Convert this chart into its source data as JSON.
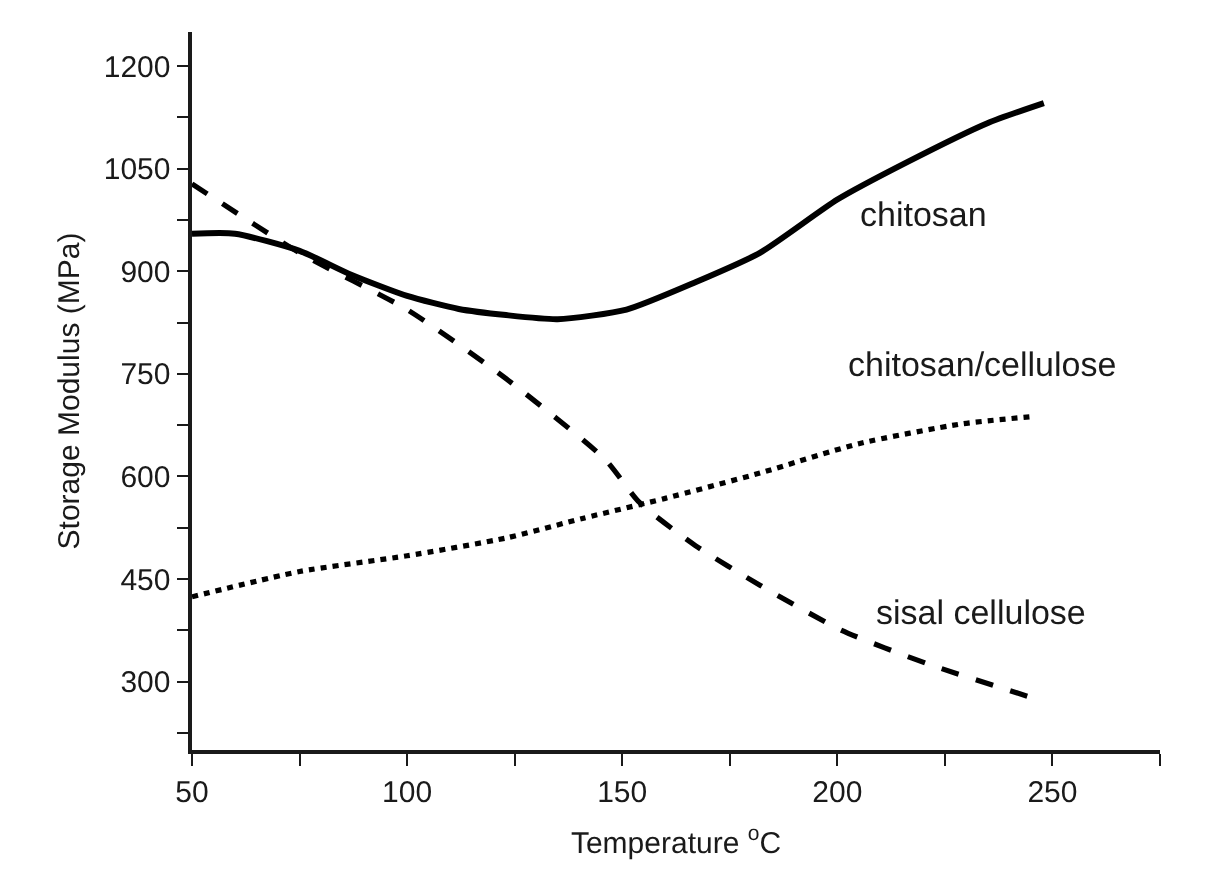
{
  "chart_data": {
    "type": "line",
    "xlabel": "Temperature $^{o}$C",
    "ylabel": "Storage Modulus (MPa)",
    "xlim": [
      50,
      275
    ],
    "ylim": [
      200,
      1250
    ],
    "xticks": [
      50,
      {
        "value": 75,
        "label": null
      },
      100,
      {
        "value": 125,
        "label": null
      },
      150,
      {
        "value": 175,
        "label": null
      },
      200,
      {
        "value": 225,
        "label": null
      },
      250,
      {
        "value": 275,
        "label": null
      }
    ],
    "yticks": [
      {
        "value": 225,
        "label": null
      },
      300,
      {
        "value": 375,
        "label": null
      },
      450,
      {
        "value": 525,
        "label": null
      },
      600,
      {
        "value": 675,
        "label": null
      },
      750,
      {
        "value": 825,
        "label": null
      },
      900,
      {
        "value": 975,
        "label": null
      },
      1050,
      {
        "value": 1125,
        "label": null
      },
      1200
    ],
    "legend": false,
    "marker": "none",
    "series": [
      {
        "name": "chitosan",
        "color": "#000000",
        "line_style": "solid",
        "x": [
          50,
          60,
          75,
          87,
          100,
          112,
          123,
          135,
          151,
          167,
          182,
          200,
          216,
          235,
          248
        ],
        "values": [
          955,
          955,
          930,
          895,
          864,
          845,
          836,
          830,
          844,
          884,
          927,
          1005,
          1059,
          1117,
          1146
        ]
      },
      {
        "name": "chitosan/cellulose",
        "color": "#000000",
        "line_style": "dotted",
        "x": [
          50,
          75,
          100,
          123,
          141,
          160,
          182,
          205,
          229,
          246
        ],
        "values": [
          424,
          461,
          484,
          510,
          539,
          568,
          605,
          648,
          677,
          688
        ]
      },
      {
        "name": "sisal cellulose",
        "color": "#000000",
        "line_style": "dashed",
        "x": [
          50,
          75,
          100,
          123,
          146,
          154,
          167,
          182,
          201,
          221,
          245
        ],
        "values": [
          1028,
          927,
          844,
          743,
          625,
          562,
          499,
          441,
          375,
          326,
          277
        ]
      }
    ]
  }
}
